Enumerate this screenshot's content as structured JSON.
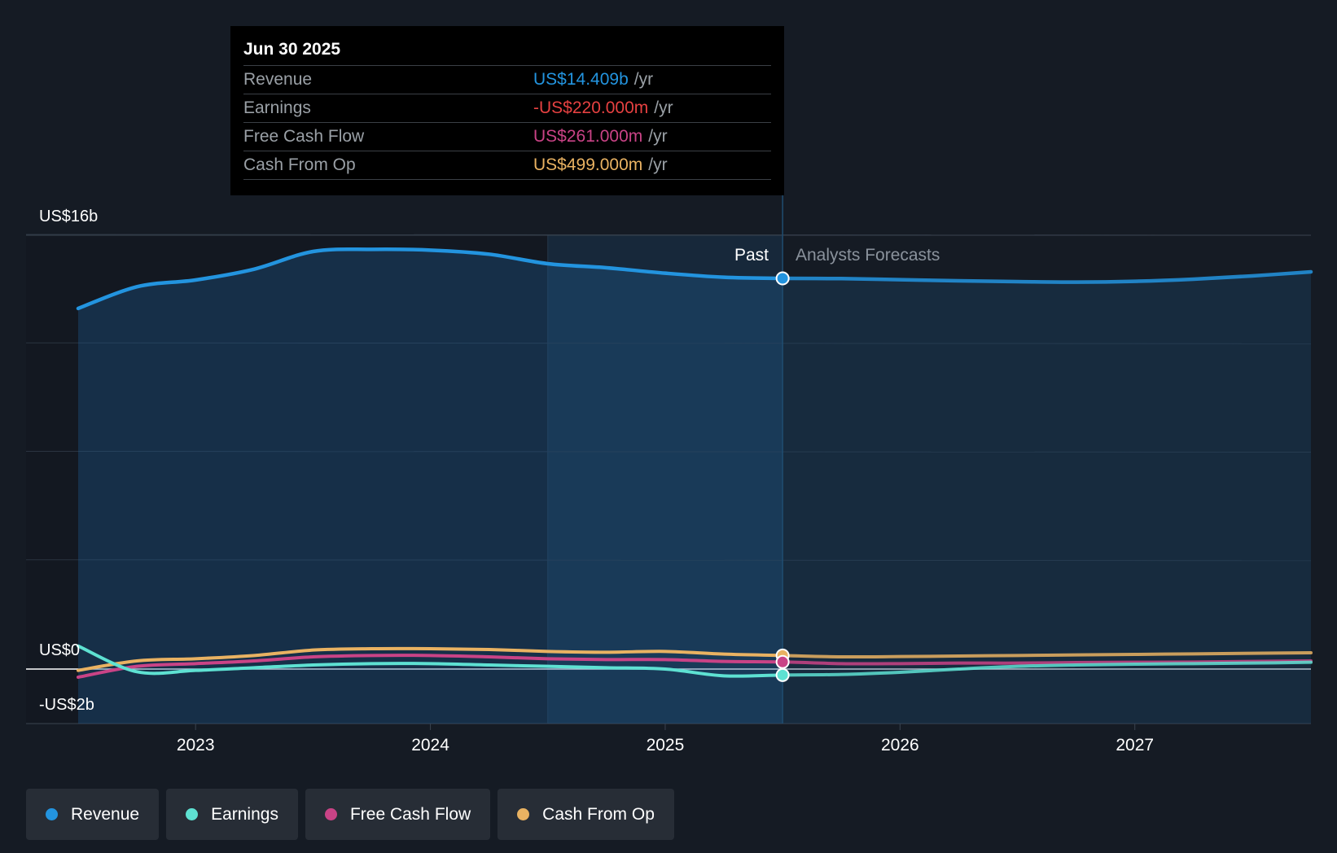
{
  "tooltip": {
    "date": "Jun 30 2025",
    "rows": [
      {
        "label": "Revenue",
        "value": "US$14.409b",
        "unit": "/yr",
        "color": "#2394df"
      },
      {
        "label": "Earnings",
        "value": "-US$220.000m",
        "unit": "/yr",
        "color": "#e64141"
      },
      {
        "label": "Free Cash Flow",
        "value": "US$261.000m",
        "unit": "/yr",
        "color": "#c94386"
      },
      {
        "label": "Cash From Op",
        "value": "US$499.000m",
        "unit": "/yr",
        "color": "#e9b262"
      }
    ]
  },
  "sections": {
    "past": "Past",
    "forecast": "Analysts Forecasts"
  },
  "legend": [
    {
      "label": "Revenue",
      "color": "#2394df"
    },
    {
      "label": "Earnings",
      "color": "#5ee1d2"
    },
    {
      "label": "Free Cash Flow",
      "color": "#c94386"
    },
    {
      "label": "Cash From Op",
      "color": "#e9b262"
    }
  ],
  "chart_data": {
    "type": "area",
    "y_axis_labels": [
      "US$16b",
      "US$0",
      "-US$2b"
    ],
    "x_ticks": [
      "2023",
      "2024",
      "2025",
      "2026",
      "2027"
    ],
    "xlim": [
      2022.5,
      2027.75
    ],
    "ylim": [
      -2,
      16
    ],
    "past_end": 2025.5,
    "highlight_start": 2024.5,
    "grid": true,
    "legend_position": "bottom",
    "series": [
      {
        "name": "Revenue",
        "color": "#2394df",
        "x": [
          2022.5,
          2022.75,
          2023.0,
          2023.25,
          2023.5,
          2023.75,
          2024.0,
          2024.25,
          2024.5,
          2024.75,
          2025.0,
          2025.25,
          2025.5,
          2025.75,
          2026.0,
          2026.25,
          2026.5,
          2026.75,
          2027.0,
          2027.25,
          2027.5,
          2027.75
        ],
        "y": [
          13.3,
          14.1,
          14.35,
          14.75,
          15.4,
          15.48,
          15.45,
          15.3,
          14.95,
          14.8,
          14.6,
          14.45,
          14.409,
          14.4,
          14.36,
          14.32,
          14.29,
          14.27,
          14.3,
          14.38,
          14.5,
          14.65
        ]
      },
      {
        "name": "Earnings",
        "color": "#5ee1d2",
        "x": [
          2022.5,
          2022.75,
          2023.0,
          2023.25,
          2023.5,
          2023.75,
          2024.0,
          2024.25,
          2024.5,
          2024.75,
          2025.0,
          2025.25,
          2025.5,
          2025.75,
          2026.0,
          2026.25,
          2026.5,
          2026.75,
          2027.0,
          2027.25,
          2027.5,
          2027.75
        ],
        "y": [
          0.85,
          -0.1,
          -0.05,
          0.05,
          0.15,
          0.2,
          0.2,
          0.15,
          0.1,
          0.05,
          0.0,
          -0.25,
          -0.22,
          -0.2,
          -0.12,
          0.0,
          0.1,
          0.15,
          0.18,
          0.2,
          0.22,
          0.25
        ]
      },
      {
        "name": "Free Cash Flow",
        "color": "#c94386",
        "x": [
          2022.5,
          2022.75,
          2023.0,
          2023.25,
          2023.5,
          2023.75,
          2024.0,
          2024.25,
          2024.5,
          2024.75,
          2025.0,
          2025.25,
          2025.5,
          2025.75,
          2026.0,
          2026.25,
          2026.5,
          2026.75,
          2027.0,
          2027.25,
          2027.5,
          2027.75
        ],
        "y": [
          -0.3,
          0.1,
          0.2,
          0.3,
          0.45,
          0.5,
          0.5,
          0.45,
          0.38,
          0.35,
          0.35,
          0.28,
          0.261,
          0.2,
          0.2,
          0.22,
          0.22,
          0.24,
          0.25,
          0.26,
          0.28,
          0.3
        ]
      },
      {
        "name": "Cash From Op",
        "color": "#e9b262",
        "x": [
          2022.5,
          2022.75,
          2023.0,
          2023.25,
          2023.5,
          2023.75,
          2024.0,
          2024.25,
          2024.5,
          2024.75,
          2025.0,
          2025.25,
          2025.5,
          2025.75,
          2026.0,
          2026.25,
          2026.5,
          2026.75,
          2027.0,
          2027.25,
          2027.5,
          2027.75
        ],
        "y": [
          -0.05,
          0.3,
          0.38,
          0.5,
          0.7,
          0.75,
          0.75,
          0.72,
          0.65,
          0.62,
          0.65,
          0.55,
          0.499,
          0.45,
          0.46,
          0.48,
          0.5,
          0.52,
          0.54,
          0.56,
          0.58,
          0.6
        ]
      }
    ]
  }
}
